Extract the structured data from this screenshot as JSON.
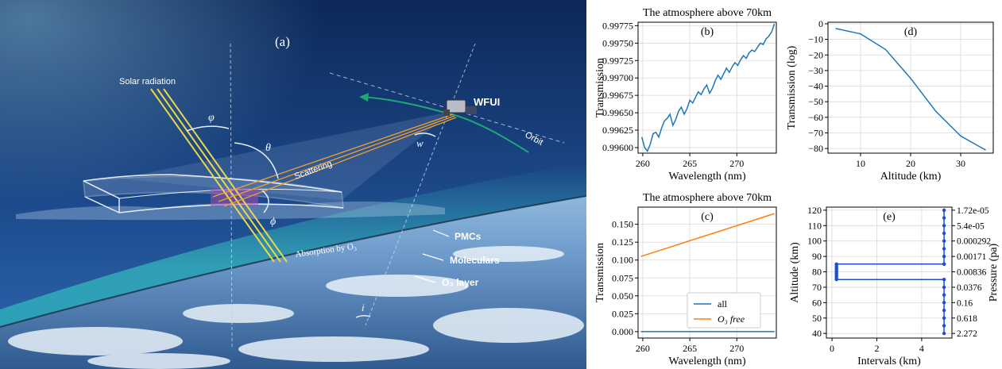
{
  "illustration": {
    "panel_label": "(a)",
    "solar_label": "Solar radiation",
    "satellite_label": "WFUI",
    "orbit_label": "Orbit",
    "scattering_label": "Scattering",
    "pmcs_label": "PMCs",
    "molecular_label": "Moleculars",
    "o3_layer_label": "O₃ layer",
    "absorption_label": "Absorption by O₃",
    "angle_phi_small": "φ",
    "angle_theta": "θ",
    "angle_phi_big": "ϕ",
    "angle_w": "w",
    "angle_i": "i",
    "colors": {
      "sky_top": "#0d2a5c",
      "sky_mid": "#1f4f92",
      "ray": "#e8d84a",
      "scatter": "#f0a030",
      "atmos_glow": "#3ad6c8"
    }
  },
  "chart_data": [
    {
      "id": "b",
      "type": "line",
      "panel_label": "(b)",
      "title": "The atmosphere above 70km",
      "xlabel": "Wavelength (nm)",
      "ylabel": "Transmission",
      "xlim": [
        259.5,
        274.2
      ],
      "ylim": [
        0.99592,
        0.9978
      ],
      "xticks": [
        260,
        265,
        270
      ],
      "xtick_labels": [
        "260",
        "265",
        "270"
      ],
      "yticks": [
        0.996,
        0.99625,
        0.9965,
        0.99675,
        0.997,
        0.99725,
        0.9975,
        0.99775
      ],
      "ytick_labels": [
        "0.99600",
        "0.99625",
        "0.99650",
        "0.99675",
        "0.99700",
        "0.99725",
        "0.99750",
        "0.99775"
      ],
      "grid": true,
      "color": "#1f77b4",
      "x": [
        259.9,
        260.2,
        260.5,
        260.8,
        261.1,
        261.4,
        261.7,
        262.0,
        262.3,
        262.6,
        262.9,
        263.2,
        263.5,
        263.8,
        264.1,
        264.4,
        264.7,
        265.0,
        265.3,
        265.6,
        265.9,
        266.2,
        266.5,
        266.8,
        267.1,
        267.4,
        267.7,
        268.0,
        268.3,
        268.6,
        268.9,
        269.2,
        269.5,
        269.8,
        270.1,
        270.4,
        270.7,
        271.0,
        271.3,
        271.6,
        271.9,
        272.2,
        272.5,
        272.8,
        273.1,
        273.4,
        273.7,
        274.0
      ],
      "y": [
        0.99615,
        0.996,
        0.99595,
        0.99605,
        0.9962,
        0.99622,
        0.99615,
        0.99628,
        0.99638,
        0.99642,
        0.99648,
        0.99632,
        0.9964,
        0.99652,
        0.99658,
        0.99648,
        0.99656,
        0.99668,
        0.99664,
        0.99672,
        0.9968,
        0.99676,
        0.99684,
        0.9969,
        0.99678,
        0.99685,
        0.99696,
        0.99704,
        0.99698,
        0.99706,
        0.99714,
        0.99708,
        0.99716,
        0.99722,
        0.99718,
        0.99726,
        0.99732,
        0.99728,
        0.99736,
        0.9974,
        0.99738,
        0.99744,
        0.9975,
        0.99748,
        0.99756,
        0.9976,
        0.99766,
        0.99778
      ]
    },
    {
      "id": "d",
      "type": "line",
      "panel_label": "(d)",
      "title": "",
      "xlabel": "Altitude (km)",
      "ylabel": "Transmission (log)",
      "xlim": [
        3.5,
        36.5
      ],
      "ylim": [
        -83,
        1
      ],
      "xticks": [
        10,
        20,
        30
      ],
      "xtick_labels": [
        "10",
        "20",
        "30"
      ],
      "yticks": [
        0,
        -10,
        -20,
        -30,
        -40,
        -50,
        -60,
        -70,
        -80
      ],
      "ytick_labels": [
        "0",
        "−10",
        "−20",
        "−30",
        "−40",
        "−50",
        "−60",
        "−70",
        "−80"
      ],
      "grid": true,
      "color": "#1f77b4",
      "x": [
        5,
        10,
        15,
        20,
        25,
        30,
        35
      ],
      "y": [
        -3,
        -6.5,
        -16.5,
        -35,
        -56,
        -72,
        -81
      ]
    },
    {
      "id": "c",
      "type": "line",
      "panel_label": "(c)",
      "title": "The atmosphere above 70km",
      "xlabel": "Wavelength (nm)",
      "ylabel": "Transmission",
      "xlim": [
        259.5,
        274.2
      ],
      "ylim": [
        -0.009,
        0.174
      ],
      "xticks": [
        260,
        265,
        270
      ],
      "xtick_labels": [
        "260",
        "265",
        "270"
      ],
      "yticks": [
        0,
        0.025,
        0.05,
        0.075,
        0.1,
        0.125,
        0.15
      ],
      "ytick_labels": [
        "0.000",
        "0.025",
        "0.050",
        "0.075",
        "0.100",
        "0.125",
        "0.150"
      ],
      "grid": true,
      "legend": "lower-center",
      "series": [
        {
          "name": "all",
          "color": "#1f77b4",
          "x": [
            259.8,
            274.0
          ],
          "y": [
            0.0,
            0.0
          ]
        },
        {
          "name": "O₃ free",
          "color": "#ff7f0e",
          "x": [
            259.8,
            274.0
          ],
          "y": [
            0.105,
            0.165
          ]
        }
      ]
    },
    {
      "id": "e",
      "type": "line",
      "panel_label": "(e)",
      "title": "",
      "xlabel": "Intervals (km)",
      "ylabel": "Altitude (km)",
      "ylabel_right": "Pressure (pa)",
      "xlim": [
        -0.25,
        5.35
      ],
      "ylim": [
        37,
        122
      ],
      "xticks": [
        0,
        2,
        4
      ],
      "xtick_labels": [
        "0",
        "2",
        "4"
      ],
      "yticks": [
        40,
        50,
        60,
        70,
        80,
        90,
        100,
        110,
        120
      ],
      "ytick_labels": [
        "40",
        "50",
        "60",
        "70",
        "80",
        "90",
        "100",
        "110",
        "120"
      ],
      "right_ytick_labels": [
        "1.72e-05",
        "5.4e-05",
        "0.000292",
        "0.00171",
        "0.00836",
        "0.0376",
        "0.16",
        "0.618",
        "2.272"
      ],
      "grid": true,
      "color": "#1f4fcc",
      "x": [
        5,
        5,
        5,
        5,
        5,
        5,
        5,
        5,
        5,
        0.2,
        0.2,
        0.2,
        0.2,
        0.2,
        0.2,
        0.2,
        0.2,
        0.2,
        0.2,
        0.2,
        5,
        5,
        5,
        5,
        5,
        5,
        5,
        5
      ],
      "y": [
        120,
        115,
        110,
        105,
        100,
        95,
        90,
        85,
        85,
        85,
        84,
        83,
        82,
        81,
        80,
        79,
        78,
        77,
        76,
        75,
        75,
        70,
        65,
        60,
        55,
        50,
        45,
        40
      ]
    }
  ]
}
